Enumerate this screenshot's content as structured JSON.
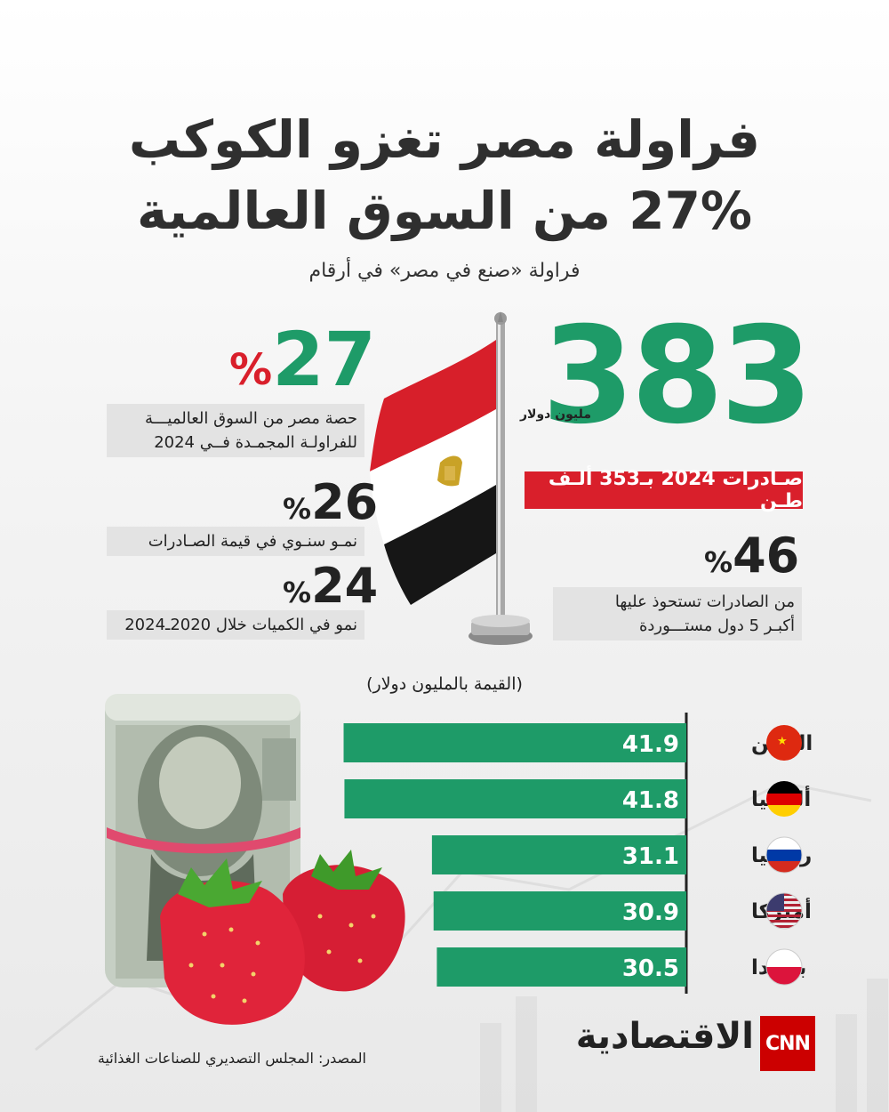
{
  "header": {
    "title_line1": "فراولة مصر تغزو الكوكب",
    "title_line2": "27% من السوق العالمية",
    "subtitle": "فراولة «صنع في مصر» في أرقام"
  },
  "main_stat": {
    "value": "383",
    "unit": "مليون دولار",
    "exports": "صـادرات 2024 بـ353 ألـف طـن"
  },
  "stats": {
    "share": {
      "value": "27",
      "pct": "%",
      "desc_line1": "حصة مصر من السوق العالميـــة",
      "desc_line2": "للفراولـة المجمـدة فــي 2024"
    },
    "value_growth": {
      "value": "26",
      "pct": "%",
      "desc": "نمـو سنـوي في قيمة الصـادرات"
    },
    "quantity_growth": {
      "value": "24",
      "pct": "%",
      "desc": "نمو في الكميات خلال 2020ـ2024"
    },
    "top5": {
      "value": "46",
      "pct": "%",
      "desc_line1": "من الصادرات تستحوذ عليها",
      "desc_line2": "أكبـر 5 دول مستـــوردة"
    }
  },
  "colors": {
    "green": "#1e9b68",
    "red": "#d91f2b"
  },
  "chart_data": {
    "type": "bar",
    "orientation": "horizontal",
    "unit_label": "(القيمة بالمليون دولار)",
    "categories": [
      "الصين",
      "ألمانيا",
      "روسيا",
      "أميركا",
      "بولندا"
    ],
    "values": [
      41.9,
      41.8,
      31.1,
      30.9,
      30.5
    ],
    "value_labels": [
      "41.9",
      "41.8",
      "31.1",
      "30.9",
      "30.5"
    ],
    "flags": [
      "china-flag-icon",
      "germany-flag-icon",
      "russia-flag-icon",
      "usa-flag-icon",
      "poland-flag-icon"
    ],
    "bar_color": "#1e9b68"
  },
  "footer": {
    "source": "المصدر: المجلس التصديري للصناعات الغذائية",
    "brand": "الاقتصادية",
    "logo": "CNN"
  }
}
